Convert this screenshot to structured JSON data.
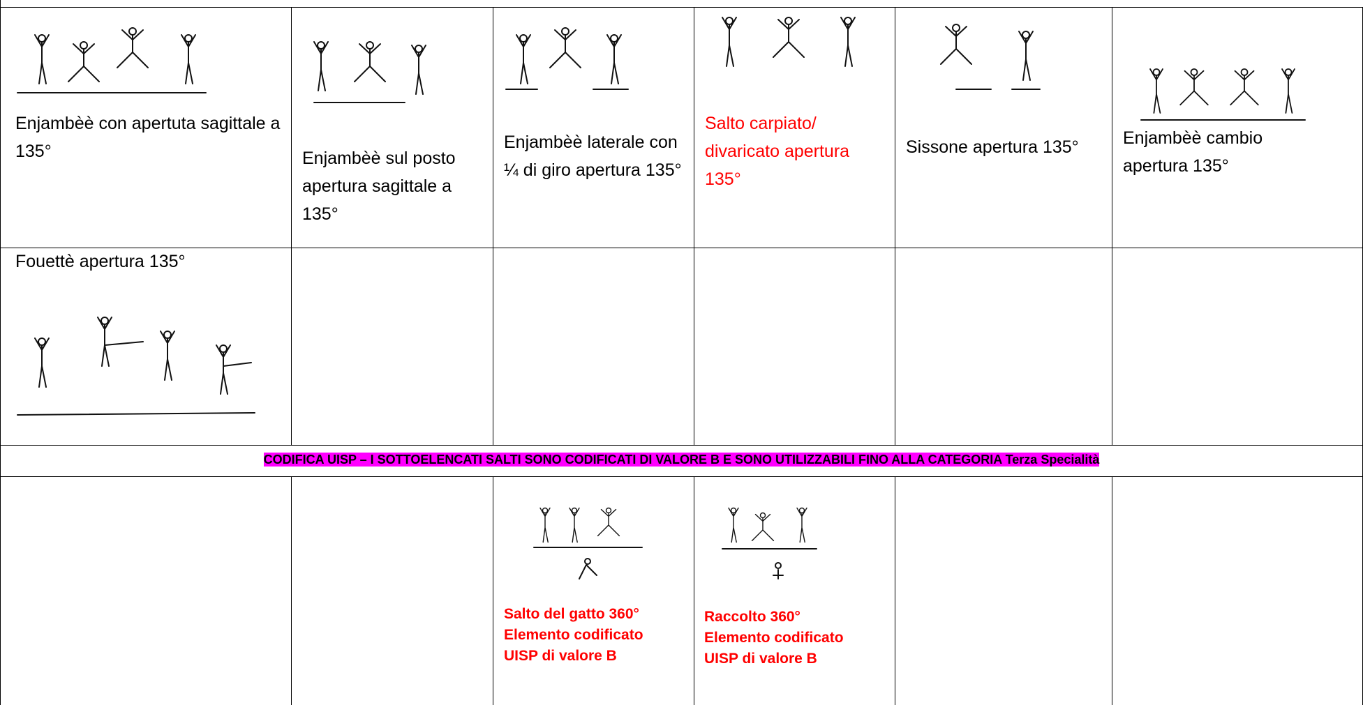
{
  "table": {
    "rows": [
      [
        "Enjambèè con apertuta sagittale a 135°",
        "Enjambèè sul posto apertura sagittale a 135°",
        "Enjambèè laterale con ¼ di giro apertura 135°",
        "Salto carpiato/ divaricato apertura 135°",
        "Sissone apertura 135°",
        "Enjambèè cambio apertura 135°"
      ],
      [
        "Fouettè  apertura 135°"
      ]
    ],
    "banner": "CODIFICA UISP – I SOTTOELENCATI SALTI SONO CODIFICATI DI VALORE B E SONO UTILIZZABILI FINO ALLA CATEGORIA Terza Specialità",
    "coded": [
      [
        "Salto del gatto 360°",
        "Elemento codificato",
        "UISP di valore B"
      ],
      [
        "Raccolto  360°",
        "Elemento codificato",
        "UISP di valore B"
      ]
    ]
  }
}
